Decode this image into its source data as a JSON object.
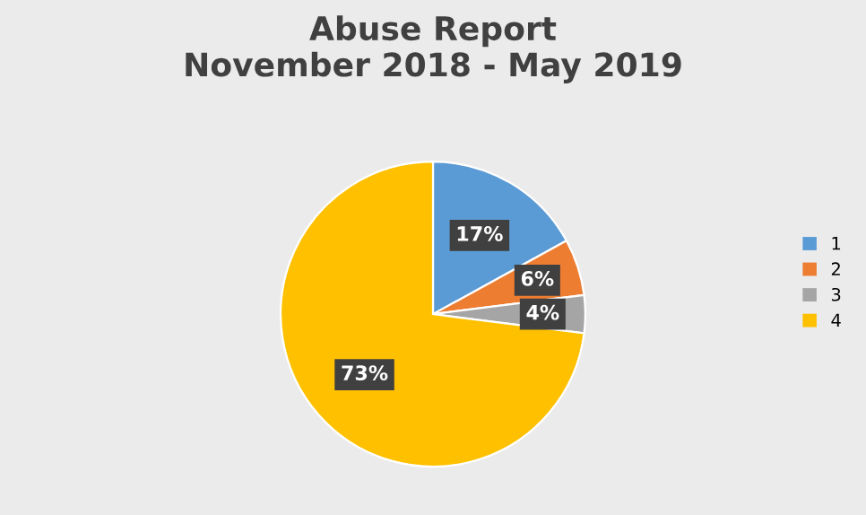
{
  "chart_data": {
    "type": "pie",
    "title": "Abuse Report\nNovember 2018 - May 2019",
    "categories": [
      "1",
      "2",
      "3",
      "4"
    ],
    "values": [
      17,
      6,
      4,
      73
    ],
    "value_labels": [
      "17%",
      "6%",
      "4%",
      "73%"
    ],
    "colors": [
      "#5b9bd5",
      "#ed7d31",
      "#a5a5a5",
      "#ffc000"
    ],
    "legend": "right"
  }
}
